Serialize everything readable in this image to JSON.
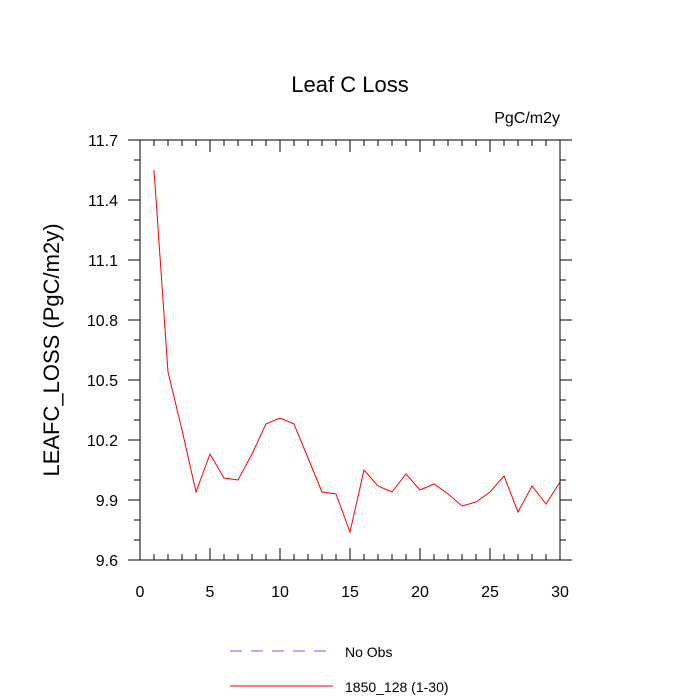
{
  "chart_data": {
    "type": "line",
    "title": "Leaf C Loss",
    "units_label": "PgC/m2y",
    "xlabel": "",
    "ylabel": "LEAFC_LOSS  (PgC/m2y)",
    "xlim": [
      0,
      30
    ],
    "ylim": [
      9.6,
      11.7
    ],
    "x_ticks": [
      0,
      5,
      10,
      15,
      20,
      25,
      30
    ],
    "y_ticks": [
      9.6,
      9.9,
      10.2,
      10.5,
      10.8,
      11.1,
      11.4,
      11.7
    ],
    "y_tick_labels": [
      "9.6",
      "9.9",
      "10.2",
      "10.5",
      "10.8",
      "11.1",
      "11.4",
      "11.7"
    ],
    "grid": false,
    "legend_position": "bottom",
    "series": [
      {
        "name": "1850_128 (1-30)",
        "color": "#ff0000",
        "dash": "solid",
        "x": [
          1,
          2,
          3,
          4,
          5,
          6,
          7,
          8,
          9,
          10,
          11,
          12,
          13,
          14,
          15,
          16,
          17,
          18,
          19,
          20,
          21,
          22,
          23,
          24,
          25,
          26,
          27,
          28,
          29,
          30
        ],
        "values": [
          11.55,
          10.54,
          10.25,
          9.94,
          10.13,
          10.01,
          10.0,
          10.13,
          10.28,
          10.31,
          10.28,
          10.11,
          9.94,
          9.93,
          9.74,
          10.05,
          9.97,
          9.94,
          10.03,
          9.95,
          9.98,
          9.93,
          9.87,
          9.89,
          9.94,
          10.02,
          9.84,
          9.97,
          9.88,
          9.99
        ]
      }
    ],
    "legend": [
      {
        "label": "No Obs",
        "color": "#6666ff",
        "dash": "dashed"
      },
      {
        "label": "1850_128 (1-30)",
        "color": "#ff0000",
        "dash": "solid"
      }
    ]
  }
}
